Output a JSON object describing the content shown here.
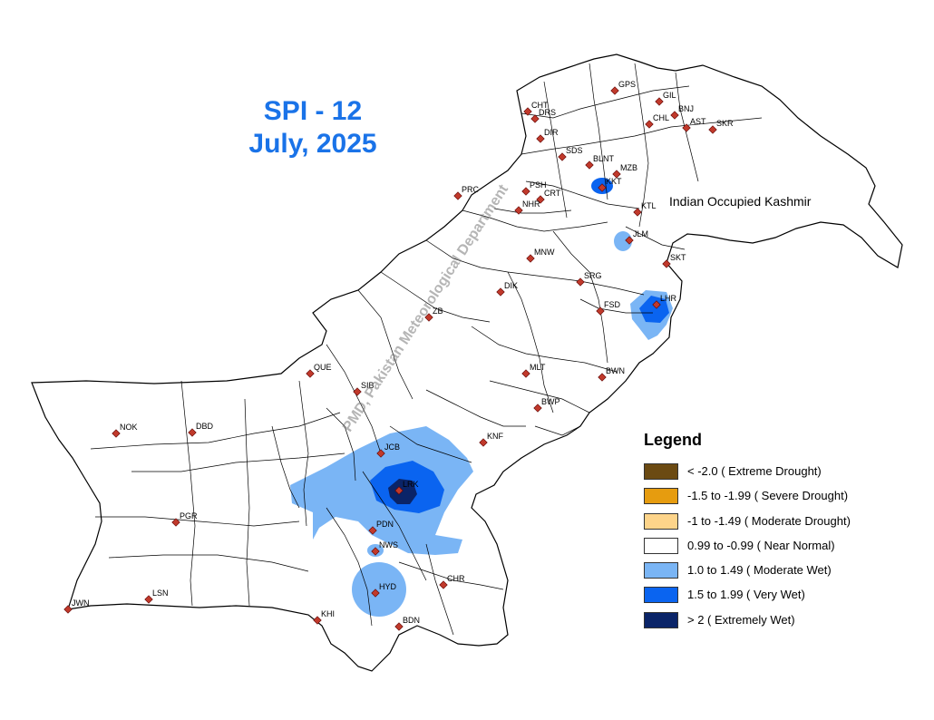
{
  "title": {
    "index": "SPI - 12",
    "period": "July, 2025"
  },
  "region_label": "Indian Occupied Kashmir",
  "watermark": "PMD, Pakistan Meteorological Department",
  "legend": {
    "title": "Legend",
    "items": [
      {
        "label": "< -2.0 ( Extreme Drought)",
        "color": "#6b4a12"
      },
      {
        "label": "-1.5 to -1.99 ( Severe Drought)",
        "color": "#e69c0f"
      },
      {
        "label": "-1 to -1.49 ( Moderate Drought)",
        "color": "#fdd48a"
      },
      {
        "label": "0.99 to -0.99 ( Near Normal)",
        "color": "#ffffff"
      },
      {
        "label": "1.0 to 1.49 ( Moderate Wet)",
        "color": "#7ab5f5"
      },
      {
        "label": "1.5 to 1.99 ( Very Wet)",
        "color": "#0a64f0"
      },
      {
        "label": "> 2 ( Extremely Wet)",
        "color": "#0a2468"
      }
    ]
  },
  "stations": [
    "GPS",
    "GIL",
    "BNJ",
    "CHT",
    "DRS",
    "DIR",
    "CHL",
    "AST",
    "SKR",
    "SDS",
    "BLNT",
    "KKT",
    "MZB",
    "PSH",
    "CRT",
    "PRC",
    "NHR",
    "KTL",
    "JLM",
    "MNW",
    "SKT",
    "SRG",
    "DIK",
    "LHR",
    "FSD",
    "ZB",
    "QUE",
    "MLT",
    "BWN",
    "SIB",
    "BWP",
    "NOK",
    "DBD",
    "KNF",
    "JCB",
    "LRK",
    "PDN",
    "PGR",
    "NWS",
    "CHR",
    "HYD",
    "JWN",
    "LSN",
    "KHI",
    "BDN"
  ]
}
